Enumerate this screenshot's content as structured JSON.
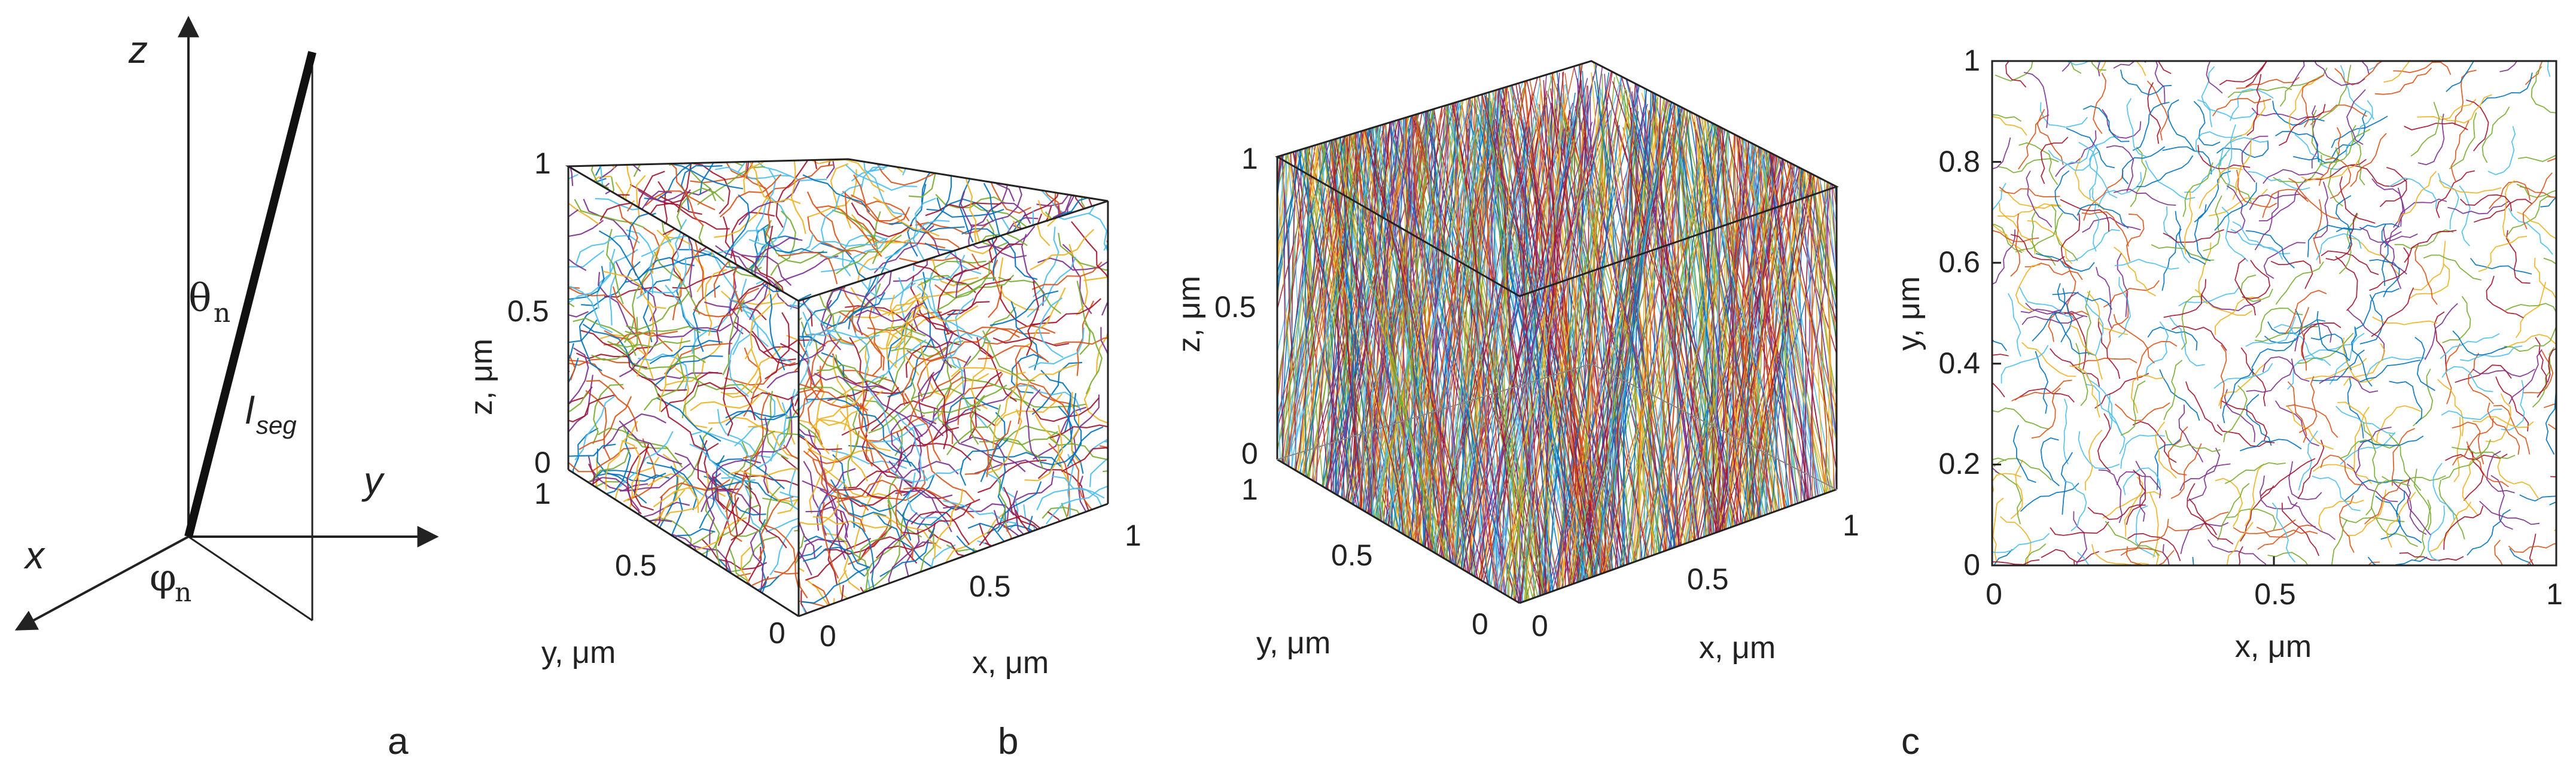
{
  "panel_a": {
    "axis_z": "z",
    "axis_y": "y",
    "axis_x": "x",
    "theta": "θ",
    "theta_sub": "n",
    "phi": "φ",
    "phi_sub": "n",
    "lseg": "l",
    "lseg_sub": "seg"
  },
  "panel_b_left": {
    "zlabel": "z, μm",
    "ylabel": "y, μm",
    "xlabel": "x, μm",
    "z_ticks": [
      "0",
      "0.5",
      "1"
    ],
    "y_ticks": [
      "0",
      "0.5",
      "1"
    ],
    "x_ticks": [
      "0",
      "0.5",
      "1"
    ],
    "zlim": [
      0,
      1
    ],
    "ylim": [
      0,
      1
    ],
    "xlim": [
      0,
      1
    ]
  },
  "panel_b_right": {
    "zlabel": "z, μm",
    "ylabel": "y, μm",
    "xlabel": "x, μm",
    "z_ticks": [
      "0",
      "0.5",
      "1"
    ],
    "y_ticks": [
      "0",
      "0.5",
      "1"
    ],
    "x_ticks": [
      "0",
      "0.5",
      "1"
    ],
    "zlim": [
      0,
      1
    ],
    "ylim": [
      0,
      1
    ],
    "xlim": [
      0,
      1
    ]
  },
  "panel_c": {
    "xlabel": "x, μm",
    "ylabel": "y, μm",
    "x_ticks": [
      "0",
      "0.5",
      "1"
    ],
    "y_ticks": [
      "0",
      "0.2",
      "0.4",
      "0.6",
      "0.8",
      "1"
    ],
    "xlim": [
      0,
      1
    ],
    "ylim": [
      0,
      1
    ]
  },
  "labels": {
    "a": "a",
    "b": "b",
    "c": "c"
  },
  "colors": {
    "line_palette": [
      "#0072bd",
      "#d95319",
      "#edb120",
      "#7e2f8e",
      "#77ac30",
      "#4dbeee",
      "#a2142f"
    ],
    "axis": "#222222"
  }
}
